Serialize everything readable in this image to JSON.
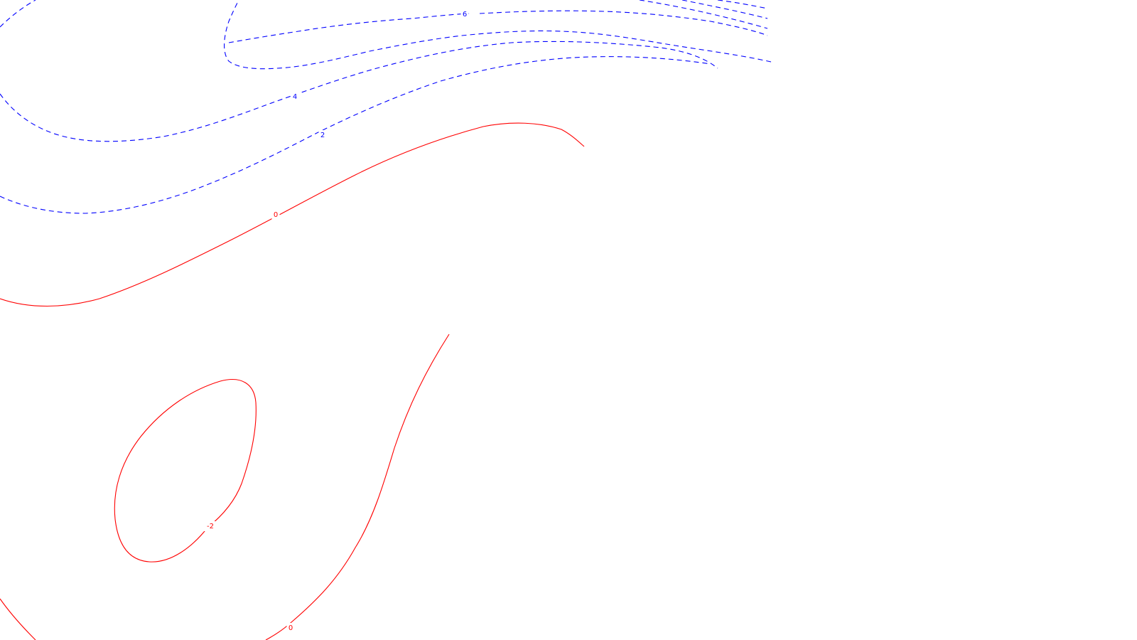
{
  "chart_data": {
    "type": "contour",
    "title": "",
    "xlabel": "",
    "ylabel": "",
    "grid": false,
    "axes_visible": false,
    "positive_color": "#0000ff",
    "zero_negative_color": "#ff0000",
    "positive_style": "dashed",
    "zero_negative_style": "solid",
    "levels": [
      {
        "value": 6,
        "label": "6",
        "color": "#0000ff",
        "style": "dashed"
      },
      {
        "value": 4,
        "label": "4",
        "color": "#0000ff",
        "style": "dashed"
      },
      {
        "value": 2,
        "label": "2",
        "color": "#0000ff",
        "style": "dashed"
      },
      {
        "value": 0,
        "label": "0",
        "color": "#ff0000",
        "style": "solid"
      },
      {
        "value": -2,
        "label": "-2",
        "color": "#ff0000",
        "style": "solid"
      }
    ]
  }
}
